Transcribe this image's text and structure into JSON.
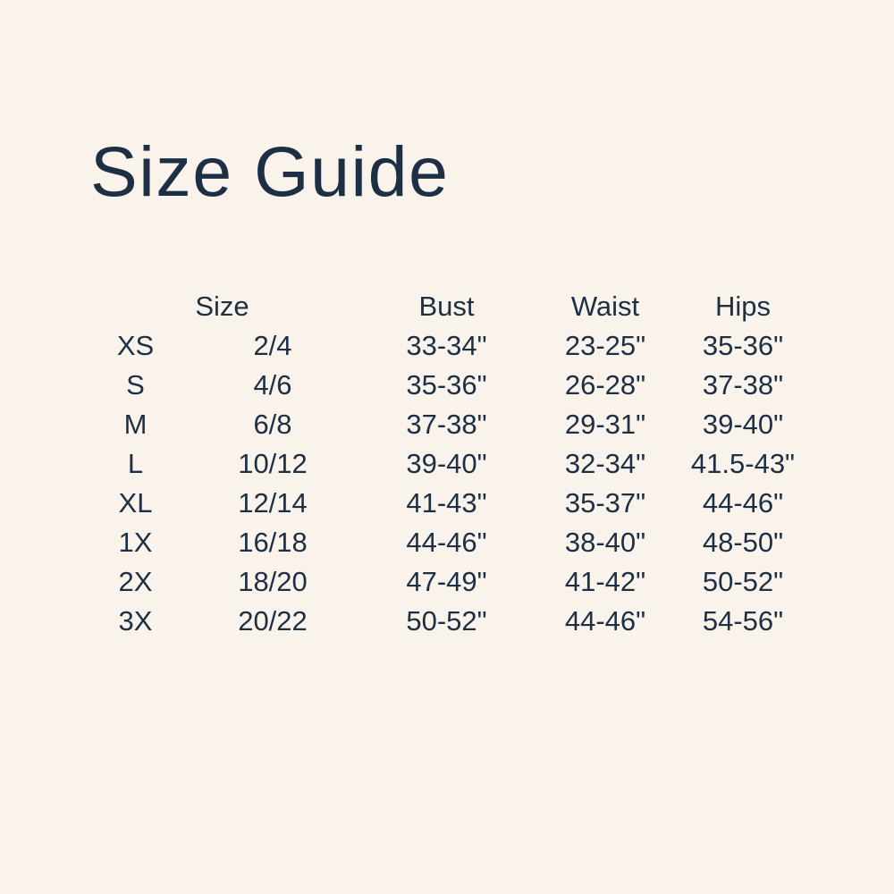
{
  "page": {
    "title": "Size Guide"
  },
  "colors": {
    "background": "#f9f3ec",
    "text": "#1d2f44"
  },
  "table": {
    "headers": {
      "size": "Size",
      "bust": "Bust",
      "waist": "Waist",
      "hips": "Hips"
    },
    "rows": [
      {
        "label": "XS",
        "numeric": "2/4",
        "bust": "33-34\"",
        "waist": "23-25\"",
        "hips": "35-36\""
      },
      {
        "label": "S",
        "numeric": "4/6",
        "bust": "35-36\"",
        "waist": "26-28\"",
        "hips": "37-38\""
      },
      {
        "label": "M",
        "numeric": "6/8",
        "bust": "37-38\"",
        "waist": "29-31\"",
        "hips": "39-40\""
      },
      {
        "label": "L",
        "numeric": "10/12",
        "bust": "39-40\"",
        "waist": "32-34\"",
        "hips": "41.5-43\""
      },
      {
        "label": "XL",
        "numeric": "12/14",
        "bust": "41-43\"",
        "waist": "35-37\"",
        "hips": "44-46\""
      },
      {
        "label": "1X",
        "numeric": "16/18",
        "bust": "44-46\"",
        "waist": "38-40\"",
        "hips": "48-50\""
      },
      {
        "label": "2X",
        "numeric": "18/20",
        "bust": "47-49\"",
        "waist": "41-42\"",
        "hips": "50-52\""
      },
      {
        "label": "3X",
        "numeric": "20/22",
        "bust": "50-52\"",
        "waist": "44-46\"",
        "hips": "54-56\""
      }
    ]
  }
}
